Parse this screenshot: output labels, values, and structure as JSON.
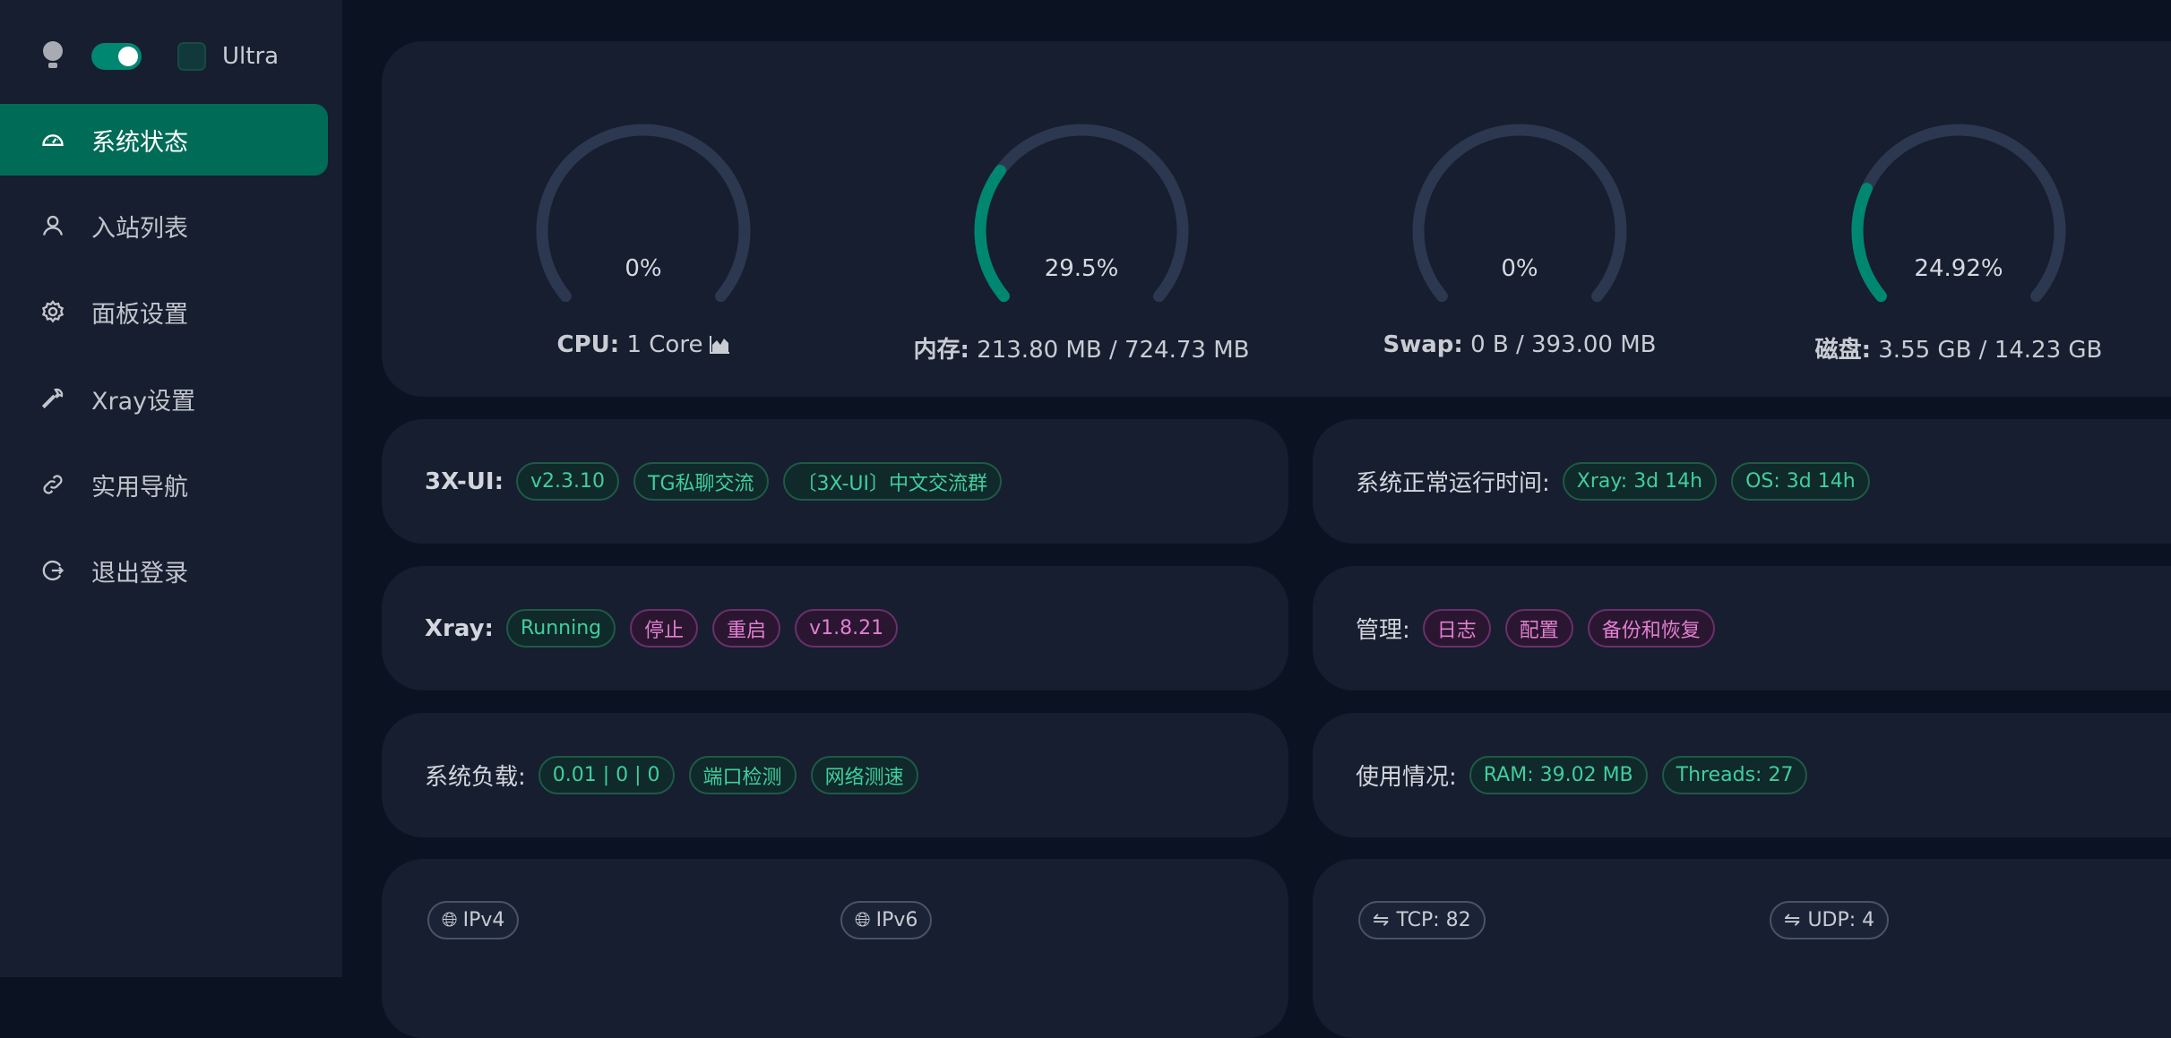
{
  "sidebar": {
    "theme": {
      "dark_mode_on": true,
      "ultra_label": "Ultra",
      "ultra_checked": false
    },
    "items": [
      {
        "label": "系统状态",
        "icon": "dashboard-icon",
        "active": true
      },
      {
        "label": "入站列表",
        "icon": "user-icon"
      },
      {
        "label": "面板设置",
        "icon": "gear-icon"
      },
      {
        "label": "Xray设置",
        "icon": "wrench-icon"
      },
      {
        "label": "实用导航",
        "icon": "link-icon"
      },
      {
        "label": "退出登录",
        "icon": "logout-icon"
      }
    ]
  },
  "gauges": [
    {
      "percent_text": "0%",
      "percent": 0,
      "label_key": "CPU:",
      "label_value": "1 Core",
      "icon": "area-chart-icon"
    },
    {
      "percent_text": "29.5%",
      "percent": 29.5,
      "label_key": "内存:",
      "label_value": "213.80 MB / 724.73 MB"
    },
    {
      "percent_text": "0%",
      "percent": 0,
      "label_key": "Swap:",
      "label_value": "0 B / 393.00 MB"
    },
    {
      "percent_text": "24.92%",
      "percent": 24.92,
      "label_key": "磁盘:",
      "label_value": "3.55 GB / 14.23 GB"
    }
  ],
  "colors": {
    "accent": "#008771",
    "track": "#2c3850",
    "tag_green": "#3fcf9e",
    "tag_purple": "#e07fd0"
  },
  "panel": {
    "label": "3X-UI:",
    "version": "v2.3.10",
    "tg": "TG私聊交流",
    "group": "〔3X-UI〕中文交流群"
  },
  "uptime": {
    "label": "系统正常运行时间:",
    "xray": "Xray: 3d 14h",
    "os": "OS: 3d 14h"
  },
  "xray": {
    "label": "Xray:",
    "status": "Running",
    "stop": "停止",
    "restart": "重启",
    "version": "v1.8.21"
  },
  "manage": {
    "label": "管理:",
    "logs": "日志",
    "config": "配置",
    "backup": "备份和恢复"
  },
  "load": {
    "label": "系统负载:",
    "value": "0.01 | 0 | 0",
    "port_check": "端口检测",
    "speed_test": "网络测速"
  },
  "usage": {
    "label": "使用情况:",
    "ram": "RAM: 39.02 MB",
    "threads": "Threads: 27"
  },
  "network": {
    "ipv4": "IPv4",
    "ipv6": "IPv6",
    "tcp": "TCP: 82",
    "udp": "UDP: 4"
  }
}
